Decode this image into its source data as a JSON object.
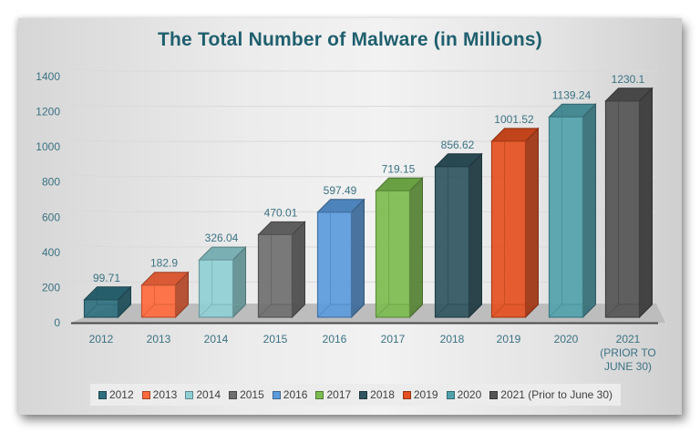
{
  "chart_data": {
    "type": "bar",
    "title": "The Total Number of Malware (in Millions)",
    "xlabel": "",
    "ylabel": "",
    "ylim": [
      0,
      1400
    ],
    "yticks": [
      0,
      200,
      400,
      600,
      800,
      1000,
      1200,
      1400
    ],
    "grid": true,
    "legend_position": "bottom",
    "style": "3d-column",
    "categories": [
      "2012",
      "2013",
      "2014",
      "2015",
      "2016",
      "2017",
      "2018",
      "2019",
      "2020",
      "2021 (Prior to June 30)"
    ],
    "category_axis_labels": [
      [
        "2012"
      ],
      [
        "2013"
      ],
      [
        "2014"
      ],
      [
        "2015"
      ],
      [
        "2016"
      ],
      [
        "2017"
      ],
      [
        "2018"
      ],
      [
        "2019"
      ],
      [
        "2020"
      ],
      [
        "2021",
        "(PRIOR TO",
        "JUNE 30)"
      ]
    ],
    "values": [
      99.71,
      182.9,
      326.04,
      470.01,
      597.49,
      719.15,
      856.62,
      1001.52,
      1139.24,
      1230.1
    ],
    "data_labels": [
      "99.71",
      "182.9",
      "326.04",
      "470.01",
      "597.49",
      "719.15",
      "856.62",
      "1001.52",
      "1139.24",
      "1230.1"
    ],
    "series": [
      {
        "name": "2012",
        "color": "#2e6f7e"
      },
      {
        "name": "2013",
        "color": "#ff6a3d"
      },
      {
        "name": "2014",
        "color": "#8fcfd4"
      },
      {
        "name": "2015",
        "color": "#6f6f6f"
      },
      {
        "name": "2016",
        "color": "#5b9bdc"
      },
      {
        "name": "2017",
        "color": "#7cbc50"
      },
      {
        "name": "2018",
        "color": "#2f5560"
      },
      {
        "name": "2019",
        "color": "#e4501f"
      },
      {
        "name": "2020",
        "color": "#52a2ad"
      },
      {
        "name": "2021 (Prior to June 30)",
        "color": "#555555"
      }
    ]
  },
  "colors": {
    "title": "#1f5f6e",
    "axis_text": "#3b7283",
    "floor": "#bdbdbd",
    "floor_edge": "#4a4a4a",
    "legend_bg": "#ececec"
  }
}
